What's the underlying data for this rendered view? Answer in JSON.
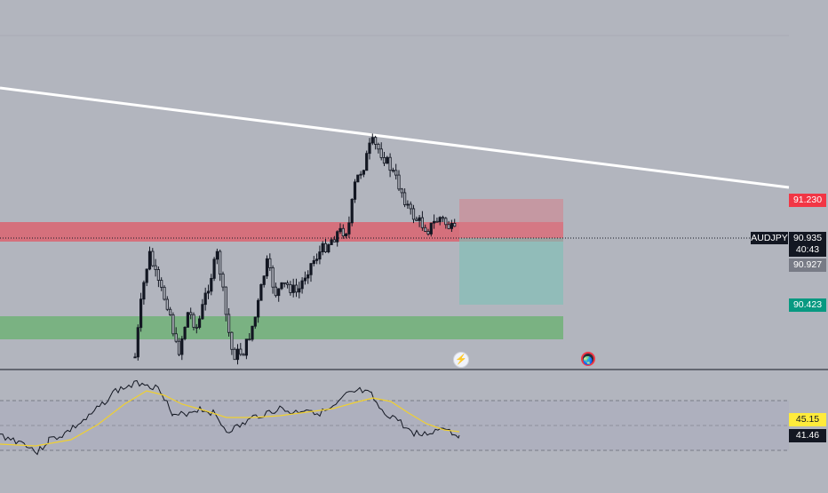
{
  "symbol": "AUDJPY",
  "last_price": "90.935",
  "countdown": "40:43",
  "price_labels": {
    "resistance": "91.230",
    "current": "90.927",
    "target": "90.423"
  },
  "rsi_labels": {
    "rsi": "45.15",
    "rsi_ma": "41.46"
  },
  "markers": {
    "flash_icon": "⚡",
    "event_icon": "🌏"
  },
  "colors": {
    "background": "#b2b5be",
    "trendline": "#ffffff",
    "supply_zone": "#f23645",
    "demand_zone": "#4caf50",
    "risk_box": "#d4838b",
    "reward_box": "#8fbfb8",
    "rsi_line": "#131722",
    "rsi_ma_line": "#ffeb3b"
  }
}
